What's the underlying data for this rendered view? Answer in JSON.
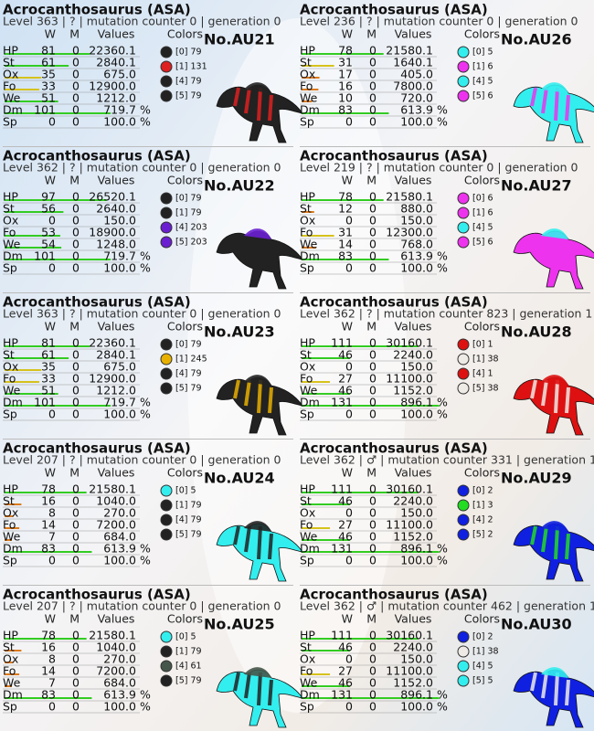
{
  "cards": [
    {
      "title": "Acrocanthosaurus (ASA)",
      "subtitle": "Level 363 | ? | mutation counter 0 | generation 0",
      "header": [
        "W",
        "M",
        "Values",
        "Colors"
      ],
      "id": "No.AU21",
      "stats": [
        [
          "HP",
          "81",
          "0",
          "22360.1"
        ],
        [
          "St",
          "61",
          "0",
          "2840.1"
        ],
        [
          "Ox",
          "35",
          "0",
          "675.0"
        ],
        [
          "Fo",
          "33",
          "0",
          "12900.0"
        ],
        [
          "We",
          "51",
          "0",
          "1212.0"
        ],
        [
          "Dm",
          "101",
          "0",
          "719.7",
          "%"
        ],
        [
          "Sp",
          "0",
          "0",
          "100.0",
          "%"
        ]
      ],
      "colors": [
        {
          "label": "[0] 79",
          "color": "#222222"
        },
        {
          "label": "[1] 131",
          "color": "#dd2020"
        },
        {
          "label": "[4] 79",
          "color": "#222222"
        },
        {
          "label": "[5] 79",
          "color": "#222222"
        }
      ]
    },
    {
      "title": "Acrocanthosaurus (ASA)",
      "subtitle": "Level 236 | ? | mutation counter 0 | generation 0",
      "header": [
        "W",
        "M",
        "Values",
        "Colors"
      ],
      "id": "No.AU26",
      "stats": [
        [
          "HP",
          "78",
          "0",
          "21580.1"
        ],
        [
          "St",
          "31",
          "0",
          "1640.1"
        ],
        [
          "Ox",
          "17",
          "0",
          "405.0"
        ],
        [
          "Fo",
          "16",
          "0",
          "7800.0"
        ],
        [
          "We",
          "10",
          "0",
          "720.0"
        ],
        [
          "Dm",
          "83",
          "0",
          "613.9",
          "%"
        ],
        [
          "Sp",
          "0",
          "0",
          "100.0",
          "%"
        ]
      ],
      "colors": [
        {
          "label": "[0] 5",
          "color": "#33eeee"
        },
        {
          "label": "[1] 6",
          "color": "#ee33ee"
        },
        {
          "label": "[4] 5",
          "color": "#33eeee"
        },
        {
          "label": "[5] 6",
          "color": "#ee33ee"
        }
      ]
    },
    {
      "title": "Acrocanthosaurus (ASA)",
      "subtitle": "Level 362 | ? | mutation counter 0 | generation 0",
      "header": [
        "W",
        "M",
        "Values",
        "Colors"
      ],
      "id": "No.AU22",
      "stats": [
        [
          "HP",
          "97",
          "0",
          "26520.1"
        ],
        [
          "St",
          "56",
          "0",
          "2640.0"
        ],
        [
          "Ox",
          "0",
          "0",
          "150.0"
        ],
        [
          "Fo",
          "53",
          "0",
          "18900.0"
        ],
        [
          "We",
          "54",
          "0",
          "1248.0"
        ],
        [
          "Dm",
          "101",
          "0",
          "719.7",
          "%"
        ],
        [
          "Sp",
          "0",
          "0",
          "100.0",
          "%"
        ]
      ],
      "colors": [
        {
          "label": "[0] 79",
          "color": "#222222"
        },
        {
          "label": "[1] 79",
          "color": "#222222"
        },
        {
          "label": "[4] 203",
          "color": "#6a1fd0"
        },
        {
          "label": "[5] 203",
          "color": "#6a1fd0"
        }
      ]
    },
    {
      "title": "Acrocanthosaurus (ASA)",
      "subtitle": "Level 219 | ? | mutation counter 0 | generation 0",
      "header": [
        "W",
        "M",
        "Values",
        "Colors"
      ],
      "id": "No.AU27",
      "stats": [
        [
          "HP",
          "78",
          "0",
          "21580.1"
        ],
        [
          "St",
          "12",
          "0",
          "880.0"
        ],
        [
          "Ox",
          "0",
          "0",
          "150.0"
        ],
        [
          "Fo",
          "31",
          "0",
          "12300.0"
        ],
        [
          "We",
          "14",
          "0",
          "768.0"
        ],
        [
          "Dm",
          "83",
          "0",
          "613.9",
          "%"
        ],
        [
          "Sp",
          "0",
          "0",
          "100.0",
          "%"
        ]
      ],
      "colors": [
        {
          "label": "[0] 6",
          "color": "#ee33ee"
        },
        {
          "label": "[1] 6",
          "color": "#ee33ee"
        },
        {
          "label": "[4] 5",
          "color": "#33eeee"
        },
        {
          "label": "[5] 6",
          "color": "#ee33ee"
        }
      ]
    },
    {
      "title": "Acrocanthosaurus (ASA)",
      "subtitle": "Level 363 | ? | mutation counter 0 | generation 0",
      "header": [
        "W",
        "M",
        "Values",
        "Colors"
      ],
      "id": "No.AU23",
      "stats": [
        [
          "HP",
          "81",
          "0",
          "22360.1"
        ],
        [
          "St",
          "61",
          "0",
          "2840.1"
        ],
        [
          "Ox",
          "35",
          "0",
          "675.0"
        ],
        [
          "Fo",
          "33",
          "0",
          "12900.0"
        ],
        [
          "We",
          "51",
          "0",
          "1212.0"
        ],
        [
          "Dm",
          "101",
          "0",
          "719.7",
          "%"
        ],
        [
          "Sp",
          "0",
          "0",
          "100.0",
          "%"
        ]
      ],
      "colors": [
        {
          "label": "[0] 79",
          "color": "#222222"
        },
        {
          "label": "[1] 245",
          "color": "#e8b000"
        },
        {
          "label": "[4] 79",
          "color": "#222222"
        },
        {
          "label": "[5] 79",
          "color": "#222222"
        }
      ]
    },
    {
      "title": "Acrocanthosaurus (ASA)",
      "subtitle": "Level 362 | ? | mutation counter 823 | generation 1",
      "header": [
        "W",
        "M",
        "Values",
        "Colors"
      ],
      "id": "No.AU28",
      "stats": [
        [
          "HP",
          "111",
          "0",
          "30160.1"
        ],
        [
          "St",
          "46",
          "0",
          "2240.0"
        ],
        [
          "Ox",
          "0",
          "0",
          "150.0"
        ],
        [
          "Fo",
          "27",
          "0",
          "11100.0"
        ],
        [
          "We",
          "46",
          "0",
          "1152.0"
        ],
        [
          "Dm",
          "131",
          "0",
          "896.1",
          "%"
        ],
        [
          "Sp",
          "0",
          "0",
          "100.0",
          "%"
        ]
      ],
      "colors": [
        {
          "label": "[0] 1",
          "color": "#dd1111"
        },
        {
          "label": "[1] 38",
          "color": "#eeeae6"
        },
        {
          "label": "[4] 1",
          "color": "#dd1111"
        },
        {
          "label": "[5] 38",
          "color": "#eeeae6"
        }
      ]
    },
    {
      "title": "Acrocanthosaurus (ASA)",
      "subtitle": "Level 207 | ? | mutation counter 0 | generation 0",
      "header": [
        "W",
        "M",
        "Values",
        "Colors"
      ],
      "id": "No.AU24",
      "stats": [
        [
          "HP",
          "78",
          "0",
          "21580.1"
        ],
        [
          "St",
          "16",
          "0",
          "1040.0"
        ],
        [
          "Ox",
          "8",
          "0",
          "270.0"
        ],
        [
          "Fo",
          "14",
          "0",
          "7200.0"
        ],
        [
          "We",
          "7",
          "0",
          "684.0"
        ],
        [
          "Dm",
          "83",
          "0",
          "613.9",
          "%"
        ],
        [
          "Sp",
          "0",
          "0",
          "100.0",
          "%"
        ]
      ],
      "colors": [
        {
          "label": "[0] 5",
          "color": "#33eeee"
        },
        {
          "label": "[1] 79",
          "color": "#222222"
        },
        {
          "label": "[4] 79",
          "color": "#222222"
        },
        {
          "label": "[5] 79",
          "color": "#222222"
        }
      ]
    },
    {
      "title": "Acrocanthosaurus (ASA)",
      "subtitle": "Level 362 | ♂ | mutation counter 331 | generation 1",
      "header": [
        "W",
        "M",
        "Values",
        "Colors"
      ],
      "id": "No.AU29",
      "stats": [
        [
          "HP",
          "111",
          "0",
          "30160.1"
        ],
        [
          "St",
          "46",
          "0",
          "2240.0"
        ],
        [
          "Ox",
          "0",
          "0",
          "150.0"
        ],
        [
          "Fo",
          "27",
          "0",
          "11100.0"
        ],
        [
          "We",
          "46",
          "0",
          "1152.0"
        ],
        [
          "Dm",
          "131",
          "0",
          "896.1",
          "%"
        ],
        [
          "Sp",
          "0",
          "0",
          "100.0",
          "%"
        ]
      ],
      "colors": [
        {
          "label": "[0] 2",
          "color": "#1020e0"
        },
        {
          "label": "[1] 3",
          "color": "#22dd22"
        },
        {
          "label": "[4] 2",
          "color": "#1020e0"
        },
        {
          "label": "[5] 2",
          "color": "#1020e0"
        }
      ]
    },
    {
      "title": "Acrocanthosaurus (ASA)",
      "subtitle": "Level 207 | ? | mutation counter 0 | generation 0",
      "header": [
        "W",
        "M",
        "Values",
        "Colors"
      ],
      "id": "No.AU25",
      "stats": [
        [
          "HP",
          "78",
          "0",
          "21580.1"
        ],
        [
          "St",
          "16",
          "0",
          "1040.0"
        ],
        [
          "Ox",
          "8",
          "0",
          "270.0"
        ],
        [
          "Fo",
          "14",
          "0",
          "7200.0"
        ],
        [
          "We",
          "7",
          "0",
          "684.0"
        ],
        [
          "Dm",
          "83",
          "0",
          "613.9",
          "%"
        ],
        [
          "Sp",
          "0",
          "0",
          "100.0",
          "%"
        ]
      ],
      "colors": [
        {
          "label": "[0] 5",
          "color": "#33eeee"
        },
        {
          "label": "[1] 79",
          "color": "#222222"
        },
        {
          "label": "[4] 61",
          "color": "#45574a"
        },
        {
          "label": "[5] 79",
          "color": "#222222"
        }
      ]
    },
    {
      "title": "Acrocanthosaurus (ASA)",
      "subtitle": "Level 362 | ♂ | mutation counter 462 | generation 1",
      "header": [
        "W",
        "M",
        "Values",
        "Colors"
      ],
      "id": "No.AU30",
      "stats": [
        [
          "HP",
          "111",
          "0",
          "30160.1"
        ],
        [
          "St",
          "46",
          "0",
          "2240.0"
        ],
        [
          "Ox",
          "0",
          "0",
          "150.0"
        ],
        [
          "Fo",
          "27",
          "0",
          "11100.0"
        ],
        [
          "We",
          "46",
          "0",
          "1152.0"
        ],
        [
          "Dm",
          "131",
          "0",
          "896.1",
          "%"
        ],
        [
          "Sp",
          "0",
          "0",
          "100.0",
          "%"
        ]
      ],
      "colors": [
        {
          "label": "[0] 2",
          "color": "#1020e0"
        },
        {
          "label": "[1] 38",
          "color": "#eeeae6"
        },
        {
          "label": "[4] 5",
          "color": "#33eeee"
        },
        {
          "label": "[5] 5",
          "color": "#33eeee"
        }
      ]
    }
  ]
}
